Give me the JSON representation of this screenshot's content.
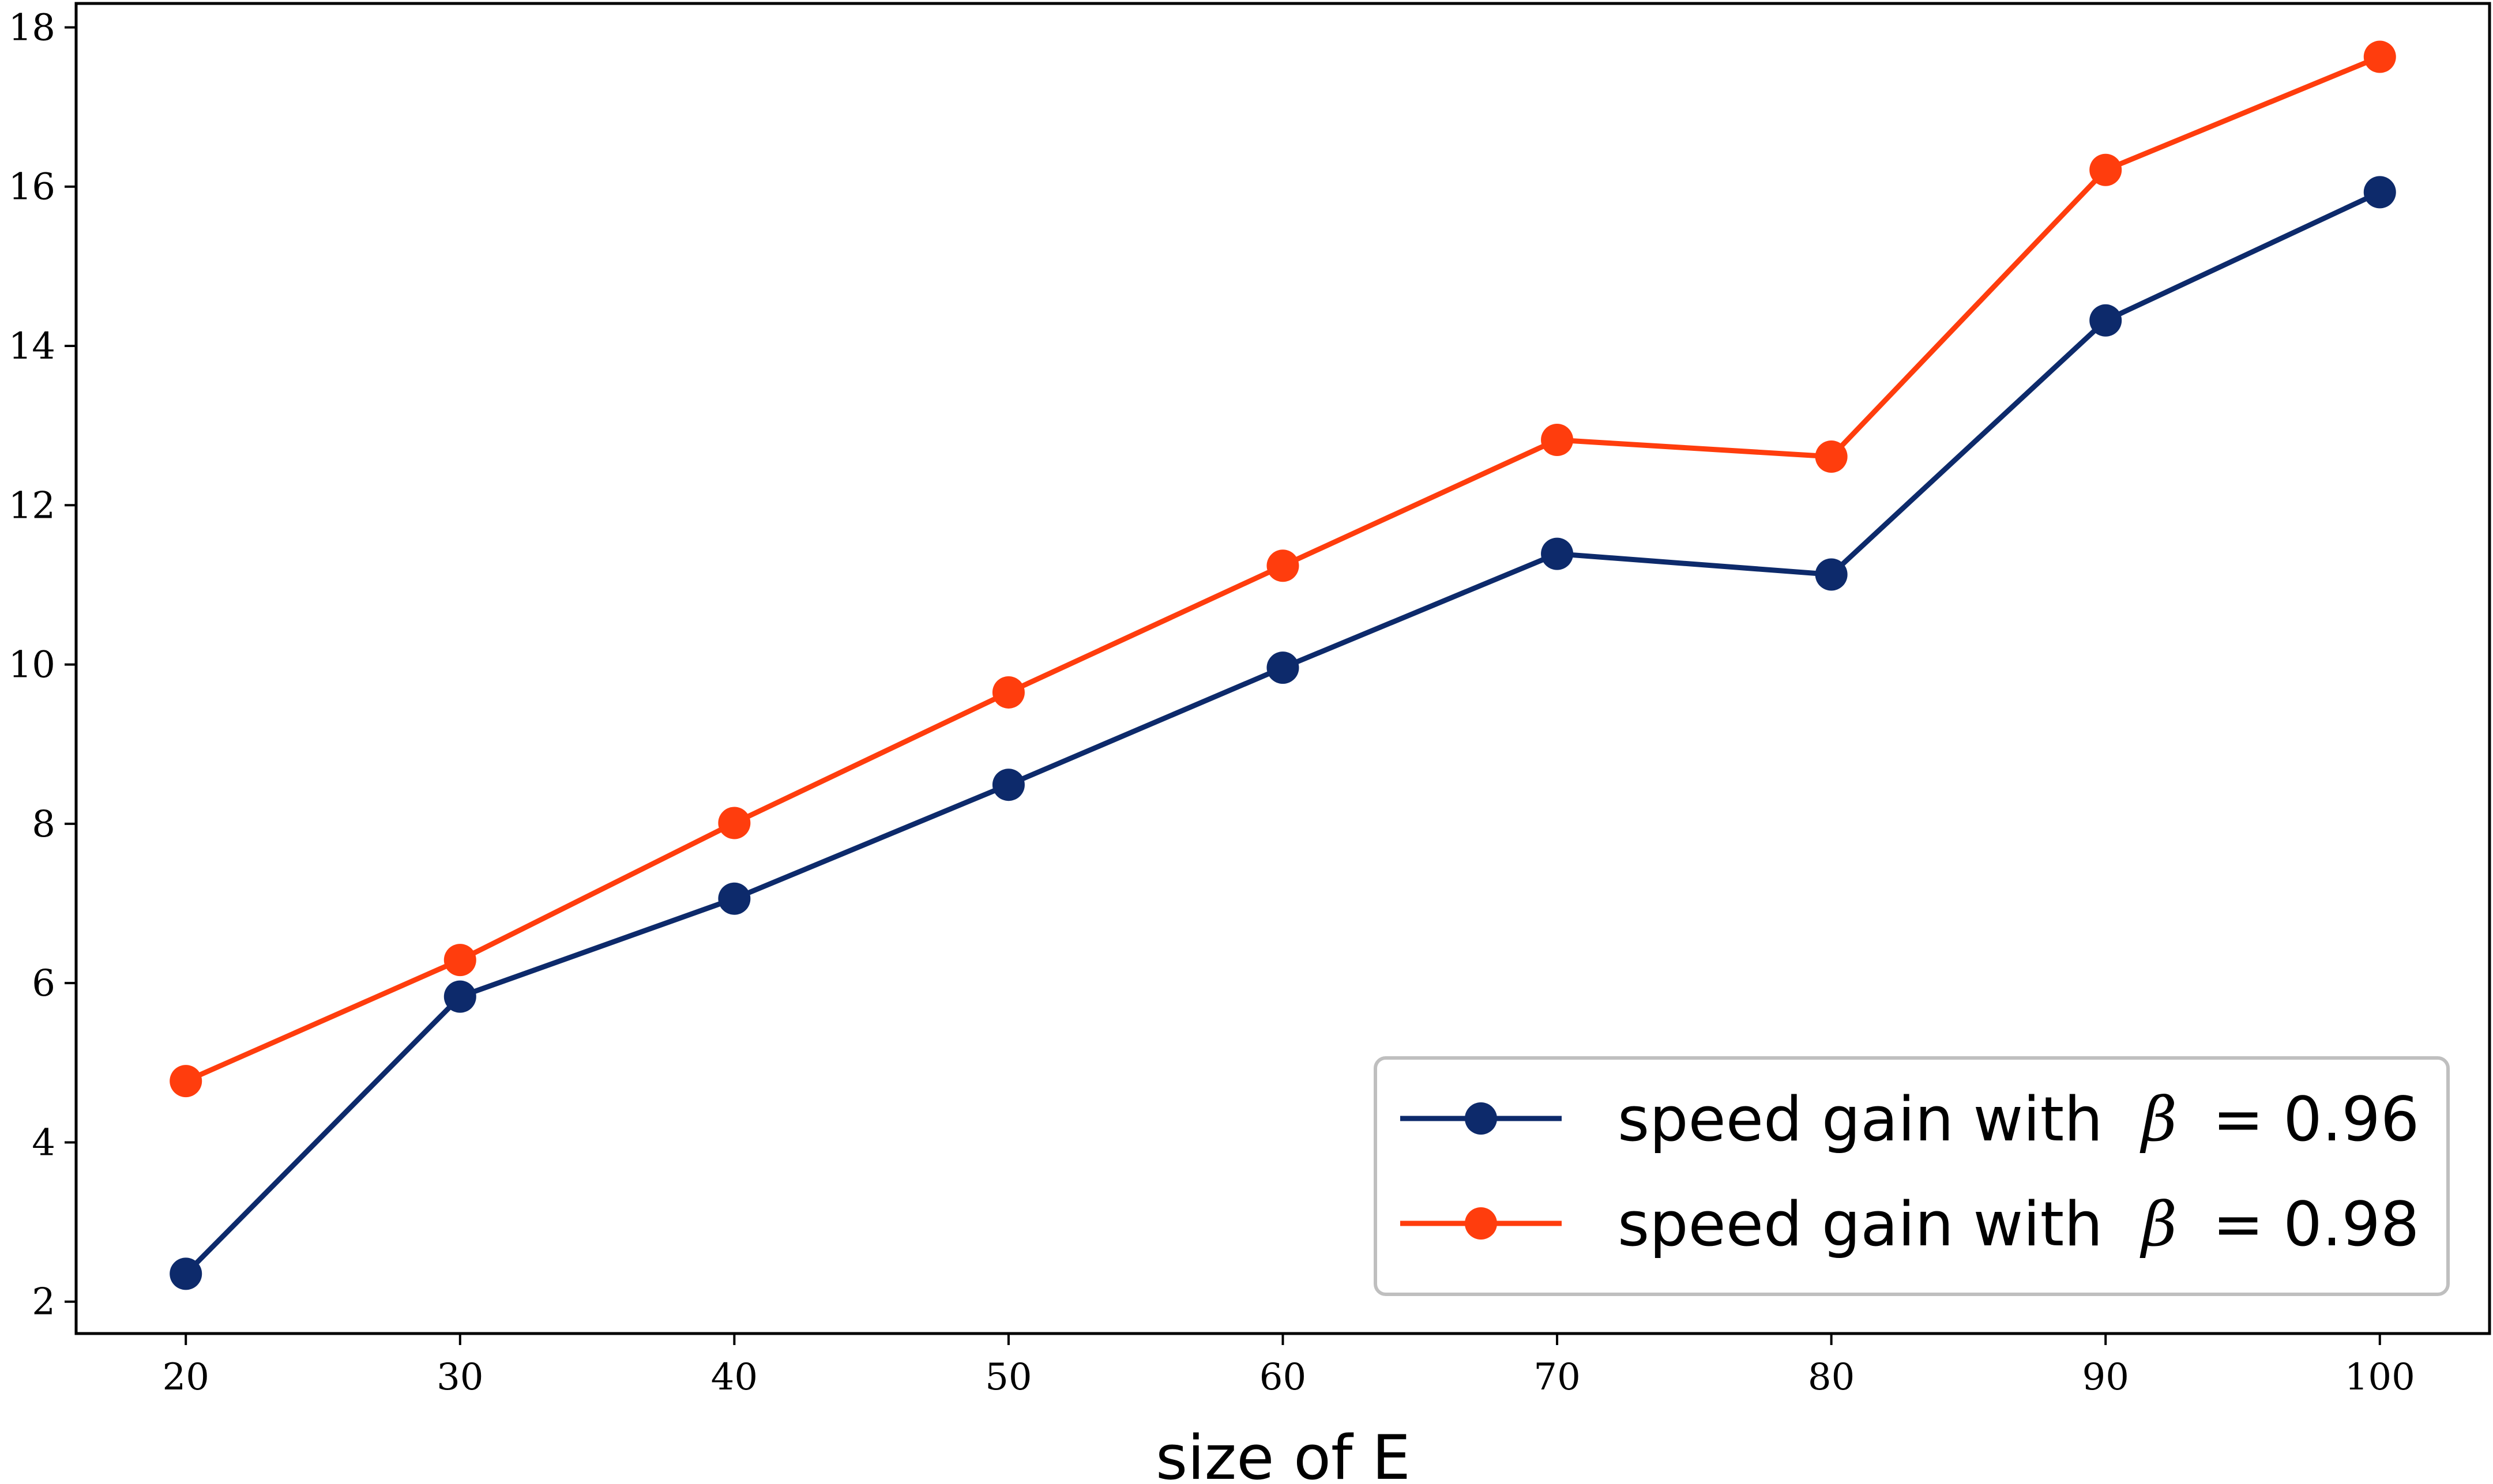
{
  "chart_data": {
    "type": "line",
    "title": "",
    "xlabel": "size of E",
    "ylabel": "",
    "x": [
      20,
      30,
      40,
      50,
      60,
      70,
      80,
      90,
      100
    ],
    "xlim": [
      16,
      104
    ],
    "ylim": [
      1.6,
      18.3
    ],
    "xticks": [
      "20",
      "30",
      "40",
      "50",
      "60",
      "70",
      "80",
      "90",
      "100"
    ],
    "yticks": [
      "2",
      "4",
      "6",
      "8",
      "10",
      "12",
      "14",
      "16",
      "18"
    ],
    "grid": false,
    "legend_position": "bottom-right",
    "series": [
      {
        "name": "speed gain with β = 0.96",
        "legend_prefix": "speed gain with ",
        "legend_symbol": "β",
        "legend_value": "= 0.96",
        "color": "#0d2a6b",
        "values": [
          2.35,
          5.83,
          7.06,
          8.49,
          9.96,
          11.39,
          11.13,
          14.32,
          15.93
        ]
      },
      {
        "name": "speed gain with β = 0.98",
        "legend_prefix": "speed gain with ",
        "legend_symbol": "β",
        "legend_value": "= 0.98",
        "color": "#ff3d0d",
        "values": [
          4.77,
          6.29,
          8.01,
          9.65,
          11.24,
          12.82,
          12.61,
          16.21,
          17.63
        ]
      }
    ]
  }
}
